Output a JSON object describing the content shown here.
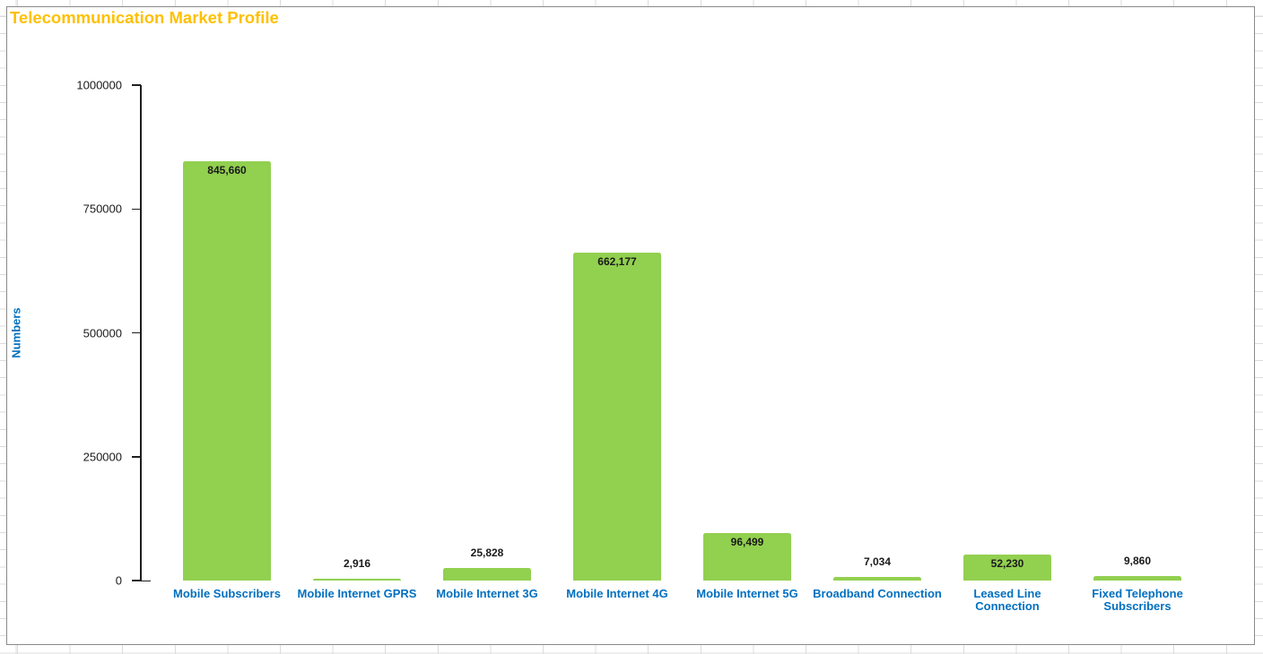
{
  "chart_data": {
    "type": "bar",
    "title": "Telecommunication Market Profile",
    "xlabel": "",
    "ylabel": "Numbers",
    "categories": [
      "Mobile Subscribers",
      "Mobile Internet GPRS",
      "Mobile Internet 3G",
      "Mobile Internet 4G",
      "Mobile Internet 5G",
      "Broadband Connection",
      "Leased Line\nConnection",
      "Fixed Telephone\nSubscribers"
    ],
    "values": [
      845660,
      2916,
      25828,
      662177,
      96499,
      7034,
      52230,
      9860
    ],
    "data_labels": [
      "845,660",
      "2,916",
      "25,828",
      "662,177",
      "96,499",
      "7,034",
      "52,230",
      "9,860"
    ],
    "ylim": [
      0,
      1000000
    ],
    "yticks": [
      {
        "value": 0,
        "label": "0"
      },
      {
        "value": 250000,
        "label": "250000"
      },
      {
        "value": 500000,
        "label": "500000"
      },
      {
        "value": 750000,
        "label": "750000"
      },
      {
        "value": 1000000,
        "label": "1000000"
      }
    ],
    "grid": false,
    "legend": "none",
    "colors": {
      "bar_fill": "#92D050",
      "title_text": "#FFC000",
      "category_text": "#0070C0",
      "axis_title_text": "#0070C0",
      "value_label_text": "#1a1a1a",
      "axis_line": "#1f1f1f"
    }
  }
}
